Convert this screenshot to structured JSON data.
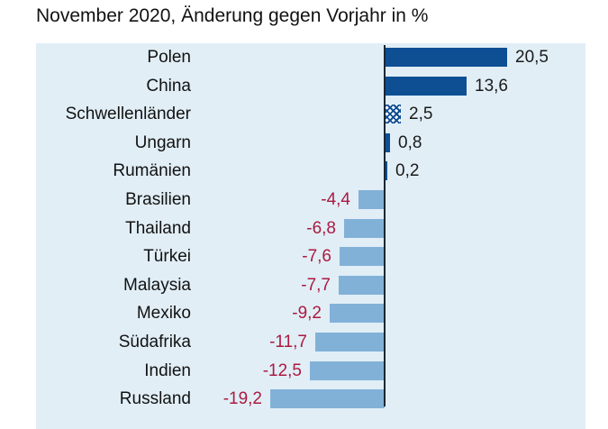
{
  "title": "November 2020, Änderung gegen Vorjahr in %",
  "colors": {
    "positive_bar": "#0e4f94",
    "negative_bar": "#82b1d8",
    "panel_background": "#e1eef6",
    "axis_line": "#1c2733",
    "positive_label": "#1a1a1a",
    "negative_label": "#ab1a40",
    "title_text": "#121212"
  },
  "chart_data": {
    "type": "bar",
    "orientation": "horizontal",
    "title": "November 2020, Änderung gegen Vorjahr in %",
    "xlabel": "",
    "ylabel": "",
    "value_unit": "%",
    "grid": false,
    "legend": null,
    "zero_line": true,
    "categories": [
      "Polen",
      "China",
      "Schwellenländer",
      "Ungarn",
      "Rumänien",
      "Brasilien",
      "Thailand",
      "Türkei",
      "Malaysia",
      "Mexiko",
      "Südafrika",
      "Indien",
      "Russland"
    ],
    "values": [
      20.5,
      13.6,
      2.5,
      0.8,
      0.2,
      -4.4,
      -6.8,
      -7.6,
      -7.7,
      -9.2,
      -11.7,
      -12.5,
      -19.2
    ],
    "value_labels": [
      "20,5",
      "13,6",
      "2,5",
      "0,8",
      "0,2",
      "-4,4",
      "-6,8",
      "-7,6",
      "-7,7",
      "-9,2",
      "-11,7",
      "-12,5",
      "-19,2"
    ],
    "hatched_categories": [
      "Schwellenländer"
    ]
  }
}
